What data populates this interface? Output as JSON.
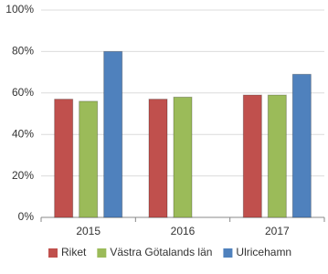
{
  "chart_data": {
    "type": "bar",
    "categories": [
      "2015",
      "2016",
      "2017"
    ],
    "series": [
      {
        "name": "Riket",
        "color": "#c0504d",
        "values": [
          57,
          57,
          59
        ]
      },
      {
        "name": "Västra Götalands län",
        "color": "#9bbb59",
        "values": [
          56,
          58,
          59
        ]
      },
      {
        "name": "Ulricehamn",
        "color": "#4f81bd",
        "values": [
          80,
          null,
          69
        ]
      }
    ],
    "ylim": [
      0,
      100
    ],
    "yticks": [
      {
        "value": 0,
        "label": "0%"
      },
      {
        "value": 20,
        "label": "20%"
      },
      {
        "value": 40,
        "label": "40%"
      },
      {
        "value": 60,
        "label": "60%"
      },
      {
        "value": 80,
        "label": "80%"
      },
      {
        "value": 100,
        "label": "100%"
      }
    ],
    "grid": true
  }
}
